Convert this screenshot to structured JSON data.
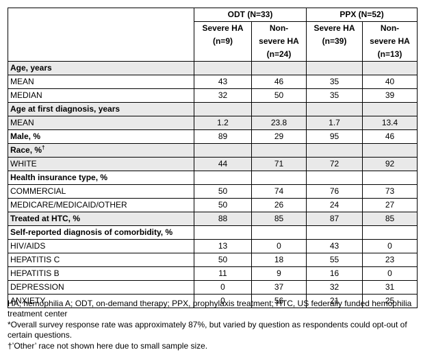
{
  "groups": {
    "odt": "ODT (N=33)",
    "ppx": "PPX (N=52)"
  },
  "subheads": [
    [
      "Severe HA",
      "(n=9)"
    ],
    [
      "Non-",
      "severe HA",
      "(n=24)"
    ],
    [
      "Severe HA",
      "(n=39)"
    ],
    [
      "Non-",
      "severe HA",
      "(n=13)"
    ]
  ],
  "rows": [
    {
      "label": "Age, years",
      "kind": "section",
      "shade": true,
      "values": [
        "",
        "",
        "",
        ""
      ]
    },
    {
      "label": "MEAN",
      "kind": "item",
      "shade": false,
      "values": [
        "43",
        "46",
        "35",
        "40"
      ]
    },
    {
      "label": "MEDIAN",
      "kind": "item",
      "shade": false,
      "values": [
        "32",
        "50",
        "35",
        "39"
      ]
    },
    {
      "label": "Age at first diagnosis, years",
      "kind": "section",
      "shade": true,
      "values": [
        "",
        "",
        "",
        ""
      ]
    },
    {
      "label": "MEAN",
      "kind": "item",
      "shade": true,
      "values": [
        "1.2",
        "23.8",
        "1.7",
        "13.4"
      ]
    },
    {
      "label": "Male, %",
      "kind": "section",
      "shade": false,
      "values": [
        "89",
        "29",
        "95",
        "46"
      ]
    },
    {
      "label": "Race, %",
      "sup": "†",
      "kind": "section",
      "shade": true,
      "values": [
        "",
        "",
        "",
        ""
      ]
    },
    {
      "label": "WHITE",
      "kind": "item",
      "shade": true,
      "values": [
        "44",
        "71",
        "72",
        "92"
      ]
    },
    {
      "label": "Health insurance type, %",
      "kind": "section",
      "shade": false,
      "values": [
        "",
        "",
        "",
        ""
      ]
    },
    {
      "label": "COMMERCIAL",
      "kind": "item",
      "shade": false,
      "values": [
        "50",
        "74",
        "76",
        "73"
      ]
    },
    {
      "label": "MEDICARE/MEDICAID/OTHER",
      "kind": "item",
      "shade": false,
      "values": [
        "50",
        "26",
        "24",
        "27"
      ]
    },
    {
      "label": "Treated at HTC, %",
      "kind": "section",
      "shade": true,
      "values": [
        "88",
        "85",
        "87",
        "85"
      ]
    },
    {
      "label": "Self-reported diagnosis of comorbidity, %",
      "kind": "section",
      "shade": false,
      "values": [
        "",
        "",
        "",
        ""
      ]
    },
    {
      "label": "HIV/AIDS",
      "kind": "item",
      "shade": false,
      "values": [
        "13",
        "0",
        "43",
        "0"
      ]
    },
    {
      "label": "HEPATITIS C",
      "kind": "item",
      "shade": false,
      "values": [
        "50",
        "18",
        "55",
        "23"
      ]
    },
    {
      "label": "HEPATITIS B",
      "kind": "item",
      "shade": false,
      "values": [
        "11",
        "9",
        "16",
        "0"
      ]
    },
    {
      "label": "DEPRESSION",
      "kind": "item",
      "shade": false,
      "values": [
        "0",
        "37",
        "32",
        "31"
      ]
    },
    {
      "label": "ANXIETY",
      "kind": "item",
      "shade": false,
      "values": [
        "0",
        "56",
        "21",
        "25"
      ]
    }
  ],
  "footnotes": [
    "HA, hemophilia A; ODT, on-demand therapy; PPX, prophylaxis treatment; HTC, US federally funded hemophilia treatment center",
    "*Overall survey response rate was approximately 87%, but varied by question as respondents could opt-out of certain questions.",
    "†’Other’ race not shown here due to small sample size."
  ]
}
